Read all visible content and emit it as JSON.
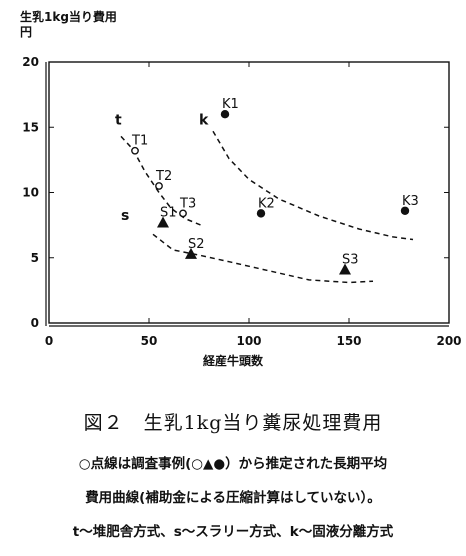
{
  "chart_data": {
    "type": "scatter",
    "ylabel_lines": [
      "生乳1kg当り費用",
      "円"
    ],
    "xlabel": "経産牛頭数",
    "xlim": [
      0,
      200
    ],
    "ylim": [
      0,
      20
    ],
    "x_ticks": [
      0,
      50,
      100,
      150,
      200
    ],
    "y_ticks": [
      0,
      5,
      10,
      15,
      20
    ],
    "grid": false,
    "series": [
      {
        "curve_label": "t",
        "marker": "circle-open",
        "points": [
          {
            "label": "T1",
            "x": 43,
            "y": 13.2
          },
          {
            "label": "T2",
            "x": 55,
            "y": 10.5
          },
          {
            "label": "T3",
            "x": 67,
            "y": 8.4
          }
        ],
        "curve_label_pos": {
          "x": 33,
          "y": 15.2
        },
        "curve": [
          [
            36,
            14.3
          ],
          [
            42,
            13.3
          ],
          [
            48,
            11.6
          ],
          [
            55,
            10.0
          ],
          [
            61,
            8.8
          ],
          [
            68,
            8.0
          ],
          [
            76,
            7.5
          ]
        ]
      },
      {
        "curve_label": "s",
        "marker": "triangle-filled",
        "points": [
          {
            "label": "S1",
            "x": 57,
            "y": 7.7
          },
          {
            "label": "S2",
            "x": 71,
            "y": 5.3
          },
          {
            "label": "S3",
            "x": 148,
            "y": 4.1
          }
        ],
        "curve_label_pos": {
          "x": 36,
          "y": 7.9
        },
        "curve": [
          [
            52,
            6.8
          ],
          [
            62,
            5.6
          ],
          [
            75,
            5.2
          ],
          [
            90,
            4.7
          ],
          [
            110,
            4.0
          ],
          [
            130,
            3.3
          ],
          [
            150,
            3.1
          ],
          [
            162,
            3.2
          ]
        ]
      },
      {
        "curve_label": "k",
        "marker": "circle-filled",
        "points": [
          {
            "label": "K1",
            "x": 88,
            "y": 16.0
          },
          {
            "label": "K2",
            "x": 106,
            "y": 8.4
          },
          {
            "label": "K3",
            "x": 178,
            "y": 8.6
          }
        ],
        "curve_label_pos": {
          "x": 75,
          "y": 15.2
        },
        "curve": [
          [
            82,
            14.7
          ],
          [
            90,
            12.6
          ],
          [
            100,
            11.0
          ],
          [
            115,
            9.5
          ],
          [
            135,
            8.2
          ],
          [
            155,
            7.2
          ],
          [
            172,
            6.6
          ],
          [
            182,
            6.4
          ]
        ]
      }
    ]
  },
  "caption": {
    "title": "図２　生乳1kg当り糞尿処理費用",
    "line1": "○点線は調査事例(○▲●）から推定された長期平均",
    "line2": "費用曲線(補助金による圧縮計算はしていない）。",
    "line3": "t～堆肥舎方式、s～スラリー方式、k～固液分離方式"
  }
}
